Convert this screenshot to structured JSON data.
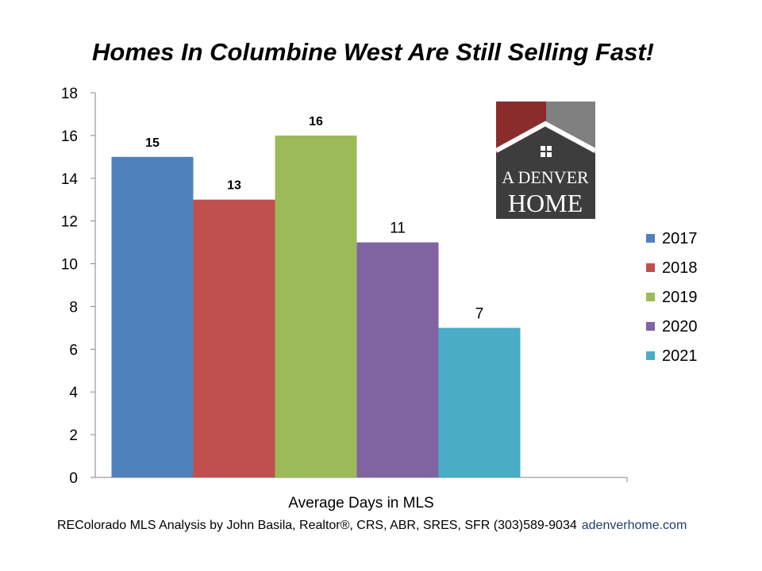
{
  "title": "Homes In Columbine West Are Still Selling Fast!",
  "chart_data": {
    "type": "bar",
    "categories": [
      "Average Days in MLS"
    ],
    "xlabel": "Average Days in MLS",
    "ylabel": "",
    "ylim": [
      0,
      18
    ],
    "yticks": [
      0,
      2,
      4,
      6,
      8,
      10,
      12,
      14,
      16,
      18
    ],
    "grid": false,
    "legend_position": "right",
    "series": [
      {
        "name": "2017",
        "values": [
          15
        ],
        "color": "#4f81bd",
        "label": "15"
      },
      {
        "name": "2018",
        "values": [
          13
        ],
        "color": "#c0504d",
        "label": "13"
      },
      {
        "name": "2019",
        "values": [
          16
        ],
        "color": "#9bbb59",
        "label": "16"
      },
      {
        "name": "2020",
        "values": [
          11
        ],
        "color": "#8064a2",
        "label": "11"
      },
      {
        "name": "2021",
        "values": [
          7
        ],
        "color": "#4bacc6",
        "label": "7"
      }
    ]
  },
  "logo": {
    "line1": "A DENVER",
    "line2": "HOME",
    "colors": {
      "roof_left": "#8b2c2c",
      "roof_right": "#808080",
      "house": "#3d3d3d"
    },
    "icon": "house-window-icon"
  },
  "footer": {
    "credit": "REColorado MLS  Analysis by John Basila, Realtor®, CRS, ABR, SRES, SFR  (303)589-9034",
    "url": "adenverhome.com"
  }
}
